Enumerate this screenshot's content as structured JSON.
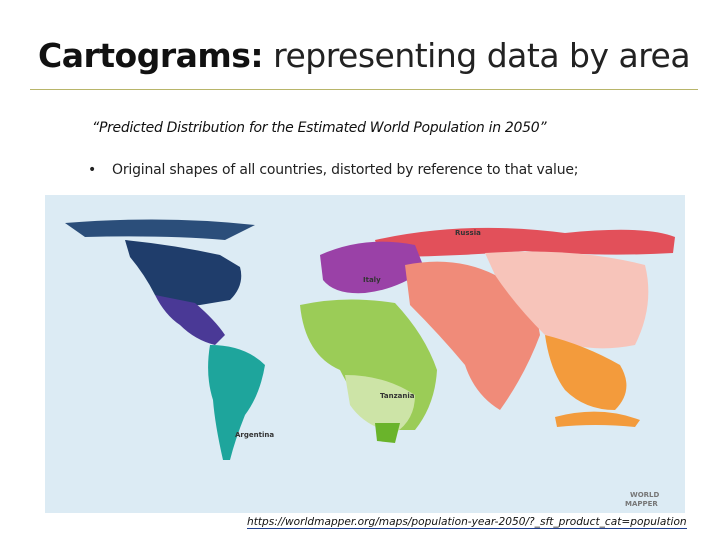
{
  "header": {
    "title_bold": "Cartograms:",
    "title_rest": " representing data by area"
  },
  "quote": "“Predicted Distribution for the Estimated World Population in 2050”",
  "bullet": "Original shapes of all countries, distorted by reference to that value;",
  "map": {
    "labels": [
      "Russia",
      "Italy",
      "Tanzania",
      "Argentina"
    ],
    "logo": [
      "WORLD",
      "MAPPER"
    ]
  },
  "source_url": "https://worldmapper.org/maps/population-year-2050/?_sft_product_cat=population"
}
